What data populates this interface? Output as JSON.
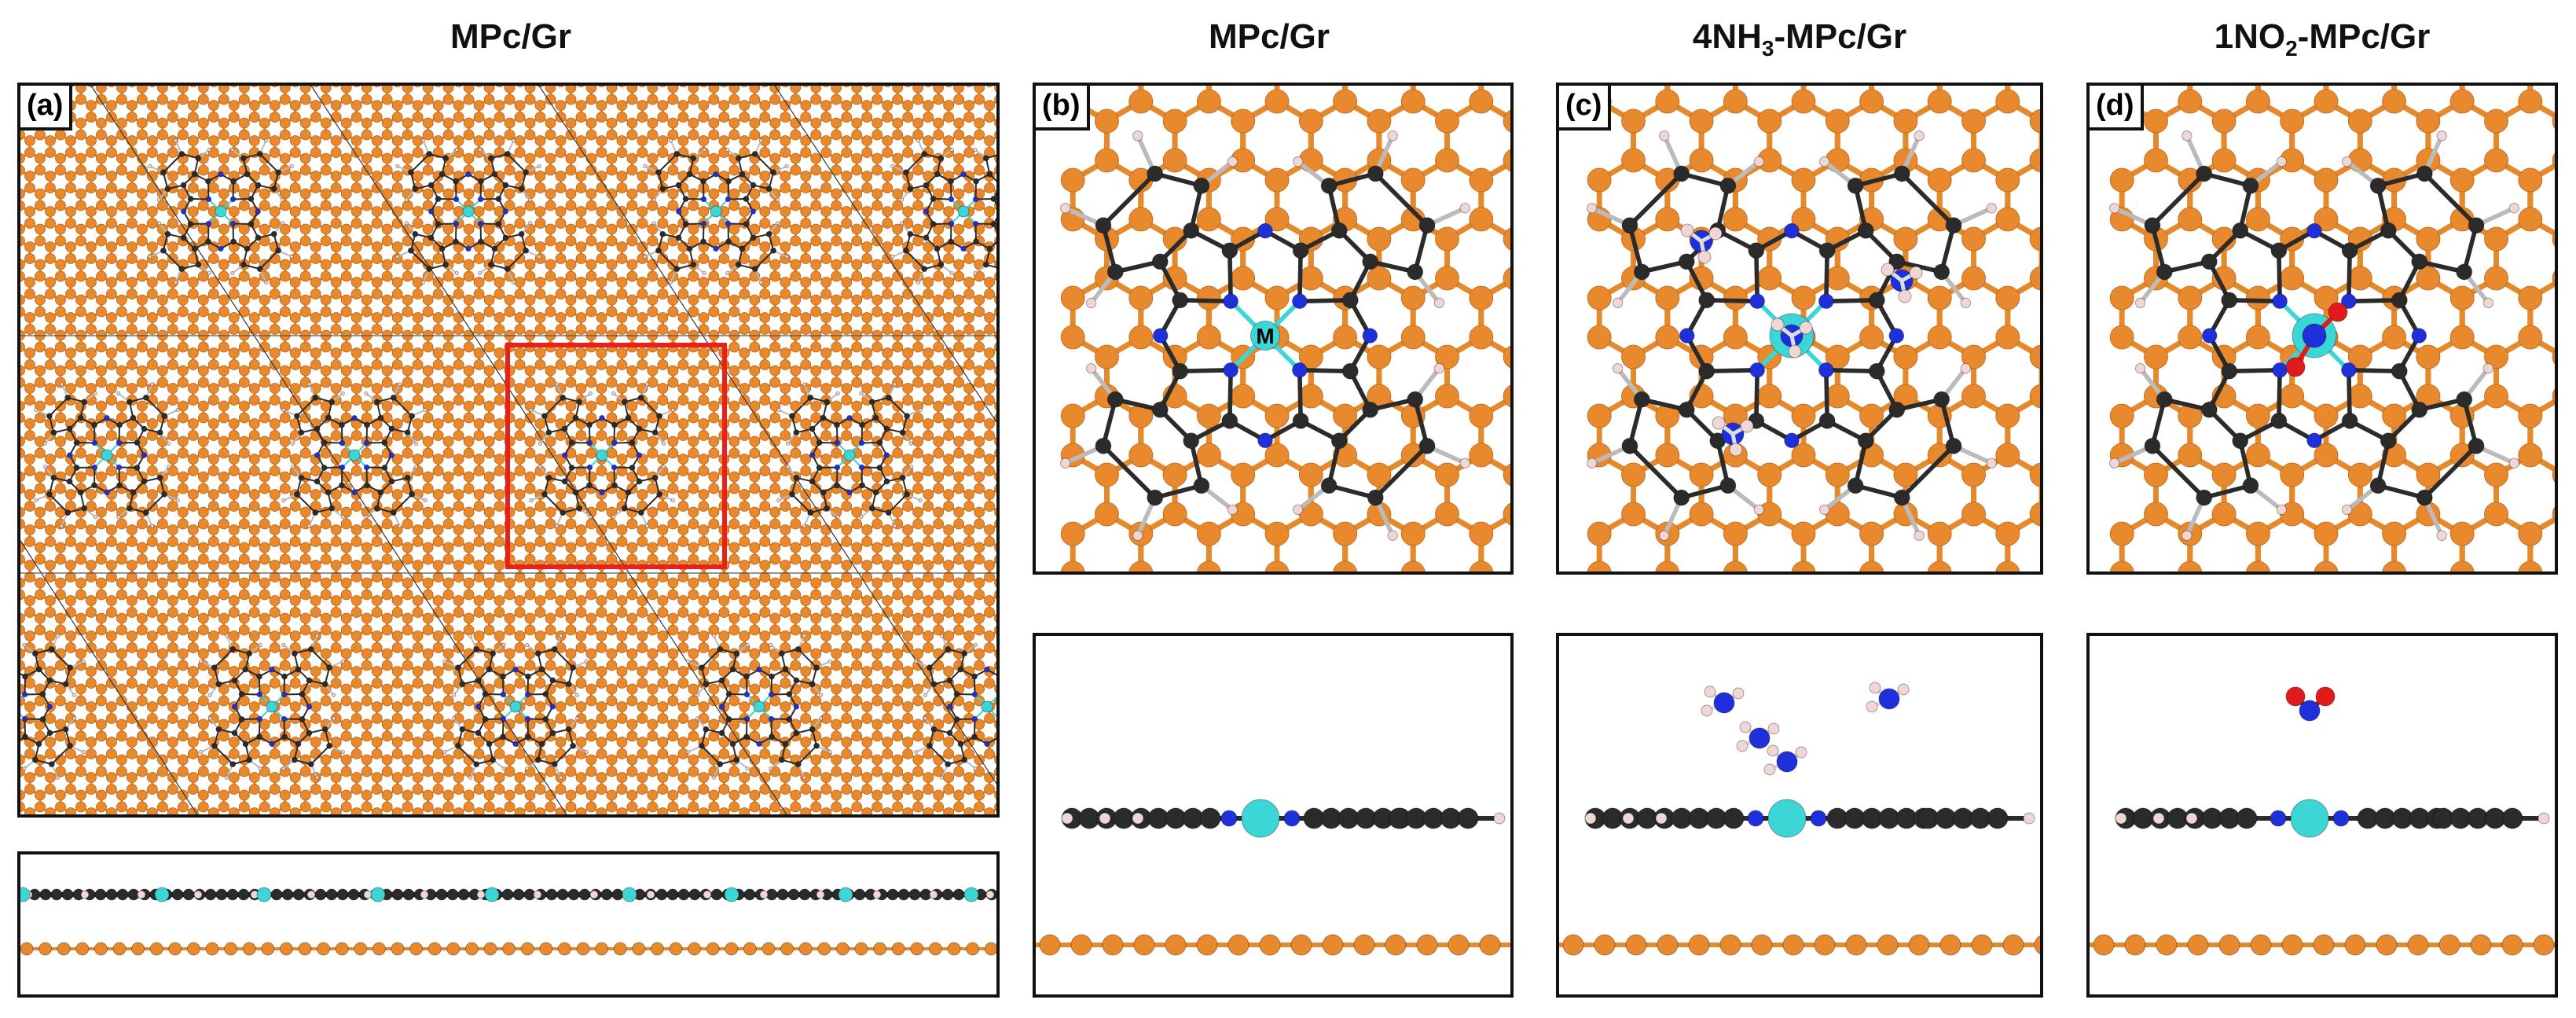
{
  "titles": {
    "a": "MPc/Gr",
    "b": "MPc/Gr",
    "c": {
      "prefix": "4NH",
      "sub": "3",
      "suffix": "-MPc/Gr"
    },
    "d": {
      "prefix": "1NO",
      "sub": "2",
      "suffix": "-MPc/Gr"
    }
  },
  "panel_labels": {
    "a": "(a)",
    "b": "(b)",
    "c": "(c)",
    "d": "(d)"
  },
  "metal_label": "M",
  "colors": {
    "graphene": "#e8892e",
    "graphene_bond": "#e58a2c",
    "carbon": "#2b2b2b",
    "nitrogen": "#1f2fd9",
    "hydrogen": "#f1d6d6",
    "metal": "#3dd6d6",
    "oxygen": "#e01b1b",
    "highlight_box": "#e8221b"
  },
  "adsorbates": {
    "c": "4NH3",
    "d": "1NO2"
  }
}
